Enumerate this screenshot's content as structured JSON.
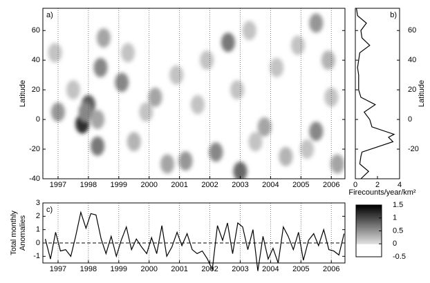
{
  "chart_data": [
    {
      "type": "contour",
      "panel_label": "a)",
      "ylabel": "Latitude",
      "xlim": [
        1996.5,
        2006.45
      ],
      "xticks": [
        1997,
        1998,
        1999,
        2000,
        2001,
        2002,
        2003,
        2004,
        2005,
        2006
      ],
      "ylim": [
        -40,
        75
      ],
      "yticks": [
        -40,
        -20,
        0,
        20,
        40,
        60
      ],
      "x": [
        1997.8,
        1998.0,
        1997.9,
        1998.3,
        1998.4,
        1999.1,
        1997.0,
        1998.5,
        2000.2,
        2002.6,
        2003.0,
        2002.2,
        2001.2,
        2005.5,
        2005.5,
        2003.8,
        1999.5,
        2004.5,
        2005.9,
        2000.6,
        1998.3,
        2006.2,
        1996.9,
        1999.9,
        2000.9,
        2001.6,
        2002.9,
        2003.5,
        2004.2,
        2004.9,
        2005.2,
        2006.0,
        1997.5,
        1999.3,
        2001.9,
        2003.3
      ],
      "y": [
        -3,
        10,
        5,
        -18,
        35,
        25,
        5,
        55,
        15,
        52,
        -35,
        -22,
        -28,
        65,
        -8,
        -5,
        -15,
        -25,
        40,
        -30,
        0,
        -30,
        45,
        5,
        30,
        10,
        20,
        -15,
        35,
        50,
        -20,
        15,
        20,
        45,
        40,
        60
      ],
      "values": [
        1.2,
        0.9,
        0.6,
        0.7,
        0.6,
        0.6,
        0.5,
        0.4,
        0.4,
        0.7,
        0.8,
        0.6,
        0.5,
        0.5,
        0.6,
        0.4,
        0.3,
        0.3,
        0.3,
        0.4,
        0.4,
        0.4,
        0.2,
        0.2,
        0.2,
        0.2,
        0.2,
        0.2,
        0.2,
        0.2,
        0.2,
        0.2,
        0.2,
        0.2,
        0.2,
        0.2
      ],
      "colorbar": {
        "clim": [
          -0.5,
          1.5
        ],
        "ticks": [
          -0.5,
          0,
          0.5,
          1,
          1.5
        ]
      }
    },
    {
      "type": "profile",
      "panel_label": "b)",
      "ylabel": "Latitude",
      "xlabel": "Firecounts/year/km²",
      "color": "#000000",
      "xlim": [
        0,
        4
      ],
      "xticks": [
        0,
        2,
        4
      ],
      "ylim": [
        -40,
        75
      ],
      "yticks": [
        -20,
        0,
        20,
        40,
        60
      ],
      "y": [
        -40,
        -35,
        -30,
        -25,
        -22,
        -15,
        -12,
        -10,
        -5,
        0,
        5,
        10,
        15,
        20,
        25,
        30,
        35,
        40,
        45,
        50,
        55,
        60,
        65,
        70,
        75
      ],
      "values": [
        0.5,
        1.2,
        0.4,
        0.5,
        0.6,
        3.4,
        3.0,
        3.5,
        1.5,
        1.3,
        0.8,
        1.8,
        0.5,
        0.3,
        0.3,
        0.3,
        0.2,
        0.3,
        0.4,
        1.3,
        0.6,
        0.5,
        1.0,
        0.2,
        0.1
      ]
    },
    {
      "type": "line",
      "panel_label": "c)",
      "ylabel": [
        "Total monthly",
        "Anomalies"
      ],
      "color": "#000000",
      "xlim": [
        1996.5,
        2006.45
      ],
      "xticks": [
        1997,
        1998,
        1999,
        2000,
        2001,
        2002,
        2003,
        2004,
        2005,
        2006
      ],
      "ylim": [
        -1.5,
        3
      ],
      "yticks": [
        -1,
        0,
        1,
        2,
        3
      ],
      "zero_line": 0,
      "x": [
        1996.58,
        1996.75,
        1996.92,
        1997.08,
        1997.25,
        1997.42,
        1997.58,
        1997.75,
        1997.92,
        1998.08,
        1998.25,
        1998.42,
        1998.58,
        1998.75,
        1998.92,
        1999.08,
        1999.25,
        1999.42,
        1999.58,
        1999.75,
        1999.92,
        2000.08,
        2000.25,
        2000.42,
        2000.58,
        2000.75,
        2000.92,
        2001.08,
        2001.25,
        2001.42,
        2001.58,
        2001.75,
        2001.92,
        2002.08,
        2002.25,
        2002.42,
        2002.58,
        2002.75,
        2002.92,
        2003.08,
        2003.25,
        2003.42,
        2003.58,
        2003.75,
        2003.92,
        2004.08,
        2004.25,
        2004.42,
        2004.58,
        2004.75,
        2004.92,
        2005.08,
        2005.25,
        2005.42,
        2005.58,
        2005.75,
        2005.92,
        2006.08,
        2006.25,
        2006.42
      ],
      "values": [
        0.3,
        -1.2,
        0.8,
        -0.6,
        -0.5,
        -1.0,
        0.5,
        2.3,
        1.1,
        2.2,
        2.1,
        0.3,
        -0.8,
        0.5,
        -1.0,
        0.2,
        1.2,
        -0.5,
        0.3,
        -0.3,
        -0.8,
        0.4,
        -0.8,
        1.3,
        -1.0,
        -0.3,
        0.8,
        -0.2,
        0.7,
        -0.5,
        -0.8,
        -0.6,
        -1.2,
        -2.0,
        1.3,
        0.2,
        1.5,
        -0.8,
        1.5,
        1.2,
        -0.5,
        1.0,
        -2.1,
        0.5,
        -1.2,
        -0.4,
        -1.5,
        1.2,
        0.5,
        -0.5,
        0.8,
        -1.3,
        0.2,
        0.7,
        -0.2,
        1.0,
        -0.5,
        -0.6,
        -0.9,
        0.7
      ]
    }
  ]
}
